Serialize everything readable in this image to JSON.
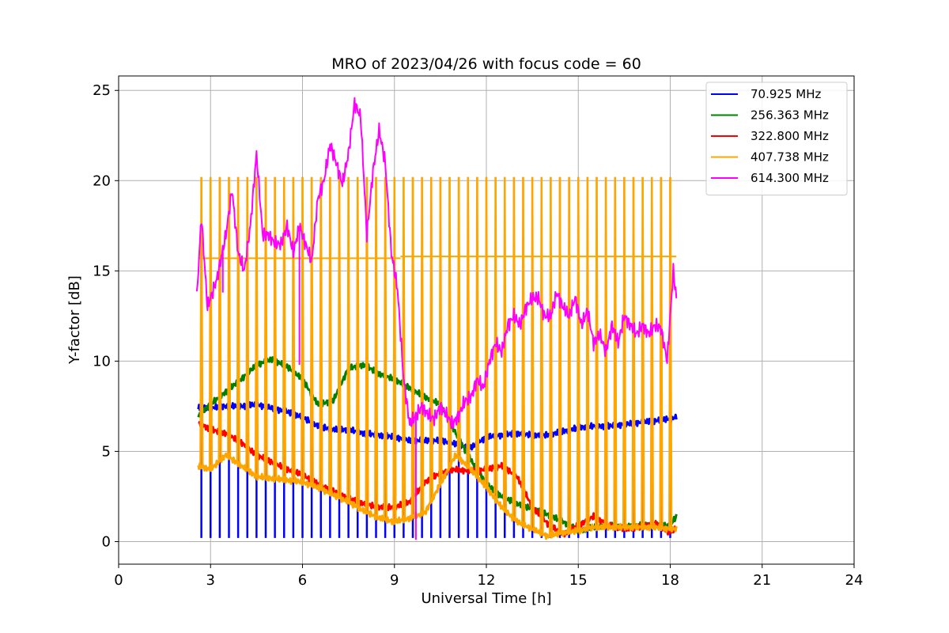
{
  "chart_data": {
    "type": "line",
    "title": "MRO of 2023/04/26 with focus code = 60",
    "xlabel": "Universal Time [h]",
    "ylabel": "Y-factor [dB]",
    "xlim": [
      0,
      24
    ],
    "ylim": [
      -1.25,
      25.8
    ],
    "xticks": [
      0,
      3,
      6,
      9,
      12,
      15,
      18,
      21,
      24
    ],
    "yticks": [
      0,
      5,
      10,
      15,
      20,
      25
    ],
    "grid": true,
    "legend_position": "top-right",
    "series": [
      {
        "name": "  70.925 MHz",
        "color": "#0000ff",
        "x": [
          2.6,
          3.0,
          3.5,
          4.0,
          4.5,
          5.0,
          5.5,
          6.0,
          6.5,
          7.0,
          7.5,
          8.0,
          8.5,
          9.0,
          9.5,
          10.0,
          10.5,
          11.0,
          11.5,
          12.0,
          12.5,
          13.0,
          13.5,
          14.0,
          14.5,
          15.0,
          15.5,
          16.0,
          16.5,
          17.0,
          17.5,
          18.0,
          18.2
        ],
        "y": [
          7.4,
          7.4,
          7.5,
          7.5,
          7.6,
          7.4,
          7.2,
          6.9,
          6.4,
          6.2,
          6.2,
          6.0,
          5.9,
          5.8,
          5.6,
          5.6,
          5.6,
          5.4,
          5.2,
          5.8,
          5.9,
          6.0,
          5.9,
          5.9,
          6.1,
          6.3,
          6.4,
          6.4,
          6.5,
          6.6,
          6.7,
          6.8,
          6.9
        ],
        "drop_value": 0.2
      },
      {
        "name": "256.363 MHz",
        "color": "#008000",
        "x": [
          2.6,
          3.0,
          3.5,
          4.0,
          4.5,
          5.0,
          5.5,
          6.0,
          6.5,
          7.0,
          7.5,
          8.0,
          8.5,
          9.0,
          9.5,
          10.0,
          10.5,
          11.0,
          11.5,
          12.0,
          12.5,
          13.0,
          13.5,
          14.0,
          14.5,
          15.0,
          15.5,
          16.0,
          16.5,
          17.0,
          17.5,
          18.0,
          18.2
        ],
        "y": [
          7.0,
          7.6,
          8.3,
          9.0,
          9.8,
          10.1,
          9.7,
          9.0,
          7.6,
          7.8,
          9.6,
          9.8,
          9.3,
          9.0,
          8.5,
          8.0,
          7.6,
          6.0,
          4.5,
          3.2,
          2.5,
          2.1,
          1.8,
          1.5,
          1.1,
          0.6,
          0.8,
          0.9,
          0.8,
          0.9,
          0.9,
          0.9,
          1.4
        ]
      },
      {
        "name": "322.800 MHz",
        "color": "#ff0000",
        "x": [
          2.6,
          3.0,
          3.5,
          4.0,
          4.5,
          5.0,
          5.5,
          6.0,
          6.5,
          7.0,
          7.5,
          8.0,
          8.5,
          9.0,
          9.5,
          10.0,
          10.5,
          11.0,
          11.5,
          12.0,
          12.5,
          13.0,
          13.5,
          14.0,
          14.5,
          15.0,
          15.5,
          16.0,
          16.5,
          17.0,
          17.5,
          18.0,
          18.2
        ],
        "y": [
          6.6,
          6.2,
          6.0,
          5.5,
          4.8,
          4.4,
          4.0,
          3.7,
          3.2,
          2.8,
          2.4,
          2.1,
          1.9,
          1.9,
          2.2,
          3.3,
          3.8,
          4.0,
          3.9,
          4.0,
          4.2,
          3.6,
          1.9,
          1.0,
          0.4,
          0.9,
          1.4,
          0.9,
          0.7,
          0.8,
          1.0,
          0.5,
          0.8
        ]
      },
      {
        "name": "407.738 MHz",
        "color": "#ffa500",
        "x": [
          2.6,
          3.0,
          3.5,
          4.0,
          4.5,
          5.0,
          5.5,
          6.0,
          6.5,
          7.0,
          7.5,
          8.0,
          8.5,
          9.0,
          9.5,
          10.0,
          10.5,
          11.0,
          11.5,
          12.0,
          12.5,
          13.0,
          13.5,
          14.0,
          14.5,
          15.0,
          15.5,
          16.0,
          16.5,
          17.0,
          17.5,
          18.0,
          18.2
        ],
        "y": [
          4.2,
          4.0,
          4.8,
          4.2,
          3.6,
          3.5,
          3.4,
          3.3,
          3.0,
          2.6,
          2.2,
          1.7,
          1.3,
          1.1,
          1.3,
          1.6,
          3.2,
          4.8,
          4.0,
          3.0,
          1.9,
          1.1,
          0.7,
          0.3,
          0.5,
          0.6,
          0.8,
          0.8,
          0.8,
          0.8,
          0.8,
          0.7,
          0.7
        ],
        "spike_value": 20.2,
        "plateau": [
          {
            "x_start": 2.6,
            "x_end": 9.2,
            "y": 15.7
          },
          {
            "x_start": 9.2,
            "x_end": 18.2,
            "y": 15.8
          }
        ]
      },
      {
        "name": "614.300 MHz",
        "color": "#ff00ff",
        "x": [
          2.55,
          2.7,
          2.9,
          3.2,
          3.5,
          3.7,
          3.9,
          4.1,
          4.3,
          4.5,
          4.7,
          4.9,
          5.1,
          5.3,
          5.5,
          5.7,
          5.9,
          6.1,
          6.3,
          6.5,
          6.7,
          6.9,
          7.1,
          7.3,
          7.5,
          7.7,
          7.9,
          8.1,
          8.3,
          8.5,
          8.7,
          8.9,
          9.1,
          9.3,
          9.5,
          9.7,
          9.9,
          10.1,
          10.3,
          10.5,
          10.7,
          10.9,
          11.1,
          11.3,
          11.5,
          11.7,
          11.9,
          12.1,
          12.3,
          12.5,
          12.7,
          12.9,
          13.1,
          13.3,
          13.5,
          13.7,
          13.9,
          14.1,
          14.3,
          14.5,
          14.7,
          14.9,
          15.1,
          15.3,
          15.5,
          15.7,
          15.9,
          16.1,
          16.3,
          16.5,
          16.7,
          16.9,
          17.1,
          17.3,
          17.5,
          17.7,
          17.9,
          18.1,
          18.2
        ],
        "y": [
          13.5,
          18.0,
          13.0,
          14.5,
          17.0,
          19.5,
          16.0,
          15.0,
          17.5,
          21.5,
          17.0,
          17.0,
          16.5,
          16.5,
          17.5,
          16.0,
          17.5,
          16.5,
          15.5,
          19.0,
          20.0,
          22.0,
          21.0,
          19.8,
          21.5,
          24.3,
          23.5,
          17.0,
          20.5,
          22.8,
          21.0,
          16.0,
          14.0,
          9.0,
          6.5,
          7.0,
          7.5,
          7.0,
          6.8,
          7.5,
          7.0,
          6.5,
          7.0,
          7.8,
          8.0,
          9.0,
          8.5,
          10.0,
          11.0,
          10.5,
          12.0,
          12.5,
          12.0,
          13.0,
          13.5,
          13.5,
          12.5,
          12.5,
          13.8,
          13.0,
          12.5,
          13.5,
          12.0,
          12.8,
          11.0,
          11.5,
          10.5,
          12.0,
          11.0,
          12.5,
          12.0,
          11.5,
          12.0,
          11.5,
          12.0,
          11.8,
          10.0,
          15.0,
          13.5
        ],
        "dips": [
          {
            "x": 3.4,
            "y": 13.8
          },
          {
            "x": 5.9,
            "y": 9.8
          },
          {
            "x": 9.7,
            "y": 0.1
          }
        ]
      }
    ],
    "spike_times": [
      2.7,
      3.0,
      3.3,
      3.6,
      3.9,
      4.2,
      4.5,
      4.8,
      5.1,
      5.4,
      5.7,
      6.0,
      6.3,
      6.6,
      6.9,
      7.2,
      7.5,
      7.8,
      8.1,
      8.4,
      8.7,
      9.0,
      9.3,
      9.6,
      9.9,
      10.2,
      10.5,
      10.8,
      11.1,
      11.4,
      11.7,
      12.0,
      12.3,
      12.6,
      12.9,
      13.2,
      13.5,
      13.8,
      14.1,
      14.4,
      14.7,
      15.0,
      15.3,
      15.6,
      15.9,
      16.2,
      16.5,
      16.8,
      17.1,
      17.4,
      17.7,
      18.0
    ]
  }
}
